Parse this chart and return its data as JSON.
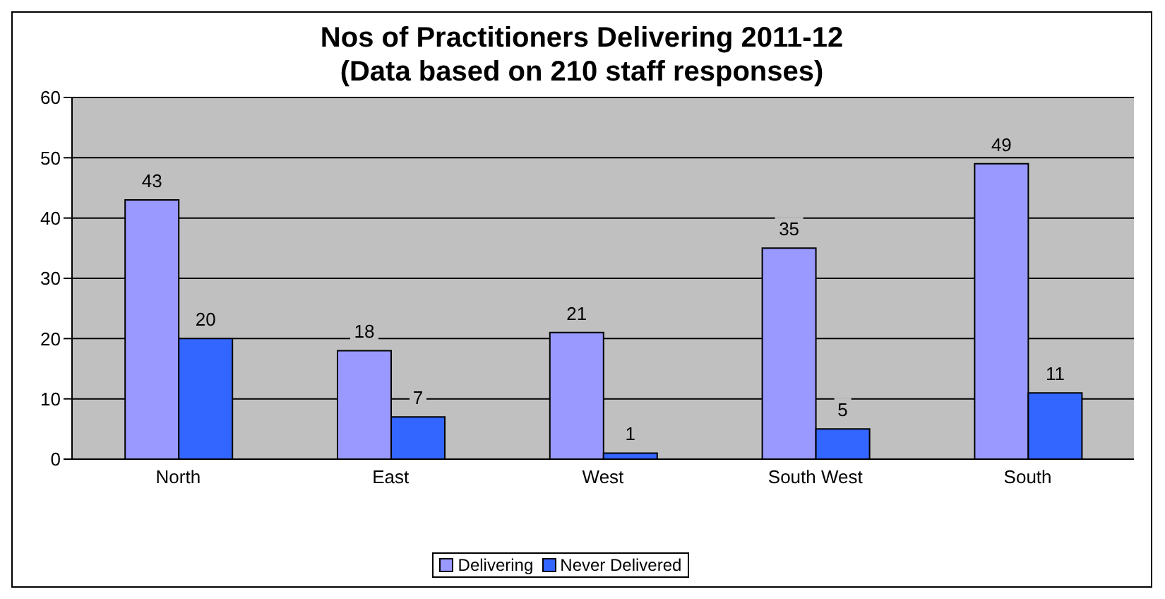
{
  "chart_data": {
    "type": "bar",
    "title": "Nos of Practitioners Delivering 2011-12",
    "subtitle": "(Data based on 210 staff responses)",
    "categories": [
      "North",
      "East",
      "West",
      "South West",
      "South"
    ],
    "series": [
      {
        "name": "Delivering",
        "color": "#9999ff",
        "values": [
          43,
          18,
          21,
          35,
          49
        ]
      },
      {
        "name": "Never Delivered",
        "color": "#3366ff",
        "values": [
          20,
          7,
          1,
          5,
          11
        ]
      }
    ],
    "ylim": [
      0,
      60
    ],
    "yticks": [
      0,
      10,
      20,
      30,
      40,
      50,
      60
    ],
    "grid": "y",
    "legend": "bottom",
    "data_labels": true
  }
}
